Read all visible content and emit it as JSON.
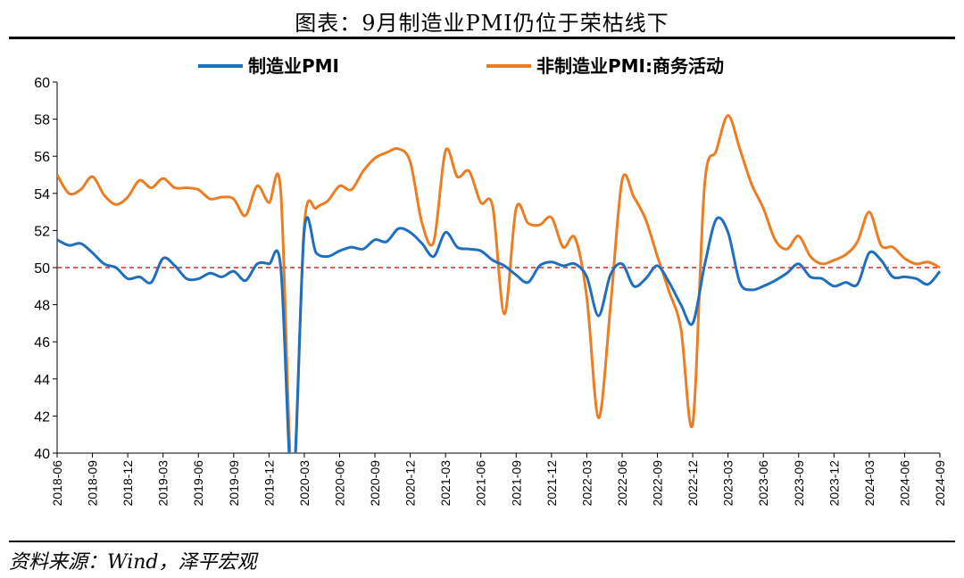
{
  "title": "图表：9月制造业PMI仍位于荣枯线下",
  "source": "资料来源：Wind，泽平宏观",
  "chart_data": {
    "type": "line",
    "ylim": [
      40,
      60
    ],
    "yticks": [
      "40",
      "42",
      "44",
      "46",
      "48",
      "50",
      "52",
      "54",
      "56",
      "58",
      "60"
    ],
    "reference_line": {
      "value": 50,
      "style": "dashed",
      "color": "#e02020"
    },
    "legend_position": "top",
    "xticks": [
      "2018-06",
      "2018-09",
      "2018-12",
      "2019-03",
      "2019-06",
      "2019-09",
      "2019-12",
      "2020-03",
      "2020-06",
      "2020-09",
      "2020-12",
      "2021-03",
      "2021-06",
      "2021-09",
      "2021-12",
      "2022-03",
      "2022-06",
      "2022-09",
      "2022-12",
      "2023-03",
      "2023-06",
      "2023-09",
      "2023-12",
      "2024-03",
      "2024-06",
      "2024-09"
    ],
    "x": [
      "2018-06",
      "2018-07",
      "2018-08",
      "2018-09",
      "2018-10",
      "2018-11",
      "2018-12",
      "2019-01",
      "2019-02",
      "2019-03",
      "2019-04",
      "2019-05",
      "2019-06",
      "2019-07",
      "2019-08",
      "2019-09",
      "2019-10",
      "2019-11",
      "2019-12",
      "2020-01",
      "2020-02",
      "2020-03",
      "2020-04",
      "2020-05",
      "2020-06",
      "2020-07",
      "2020-08",
      "2020-09",
      "2020-10",
      "2020-11",
      "2020-12",
      "2021-01",
      "2021-02",
      "2021-03",
      "2021-04",
      "2021-05",
      "2021-06",
      "2021-07",
      "2021-08",
      "2021-09",
      "2021-10",
      "2021-11",
      "2021-12",
      "2022-01",
      "2022-02",
      "2022-03",
      "2022-04",
      "2022-05",
      "2022-06",
      "2022-07",
      "2022-08",
      "2022-09",
      "2022-10",
      "2022-11",
      "2022-12",
      "2023-01",
      "2023-02",
      "2023-03",
      "2023-04",
      "2023-05",
      "2023-06",
      "2023-07",
      "2023-08",
      "2023-09",
      "2023-10",
      "2023-11",
      "2023-12",
      "2024-01",
      "2024-02",
      "2024-03",
      "2024-04",
      "2024-05",
      "2024-06",
      "2024-07",
      "2024-08",
      "2024-09"
    ],
    "series": [
      {
        "name": "制造业PMI",
        "color": "#1f6fbf",
        "values": [
          51.5,
          51.2,
          51.3,
          50.8,
          50.2,
          50.0,
          49.4,
          49.5,
          49.2,
          50.5,
          50.1,
          49.4,
          49.4,
          49.7,
          49.5,
          49.8,
          49.3,
          50.2,
          50.2,
          50.0,
          35.7,
          52.0,
          50.8,
          50.6,
          50.9,
          51.1,
          51.0,
          51.5,
          51.4,
          52.1,
          51.9,
          51.3,
          50.6,
          51.9,
          51.1,
          51.0,
          50.9,
          50.4,
          50.1,
          49.6,
          49.2,
          50.1,
          50.3,
          50.1,
          50.2,
          49.5,
          47.4,
          49.6,
          50.2,
          49.0,
          49.4,
          50.1,
          49.2,
          48.0,
          47.0,
          50.1,
          52.6,
          51.9,
          49.2,
          48.8,
          49.0,
          49.3,
          49.7,
          50.2,
          49.5,
          49.4,
          49.0,
          49.2,
          49.1,
          50.8,
          50.4,
          49.5,
          49.5,
          49.4,
          49.1,
          49.8
        ]
      },
      {
        "name": "非制造业PMI:商务活动",
        "color": "#ee7d22",
        "values": [
          55.0,
          54.0,
          54.2,
          54.9,
          53.9,
          53.4,
          53.8,
          54.7,
          54.3,
          54.8,
          54.3,
          54.3,
          54.2,
          53.7,
          53.8,
          53.7,
          52.8,
          54.4,
          53.5,
          54.1,
          29.6,
          52.3,
          53.2,
          53.6,
          54.4,
          54.2,
          55.2,
          55.9,
          56.2,
          56.4,
          55.7,
          52.4,
          51.4,
          56.3,
          54.9,
          55.2,
          53.5,
          53.3,
          47.5,
          53.2,
          52.4,
          52.3,
          52.7,
          51.1,
          51.6,
          48.4,
          41.9,
          47.8,
          54.7,
          53.8,
          52.6,
          50.6,
          48.7,
          46.7,
          41.6,
          54.4,
          56.3,
          58.2,
          56.4,
          54.5,
          53.2,
          51.5,
          51.0,
          51.7,
          50.6,
          50.2,
          50.4,
          50.7,
          51.4,
          53.0,
          51.2,
          51.1,
          50.5,
          50.2,
          50.3,
          50.0
        ]
      }
    ]
  }
}
